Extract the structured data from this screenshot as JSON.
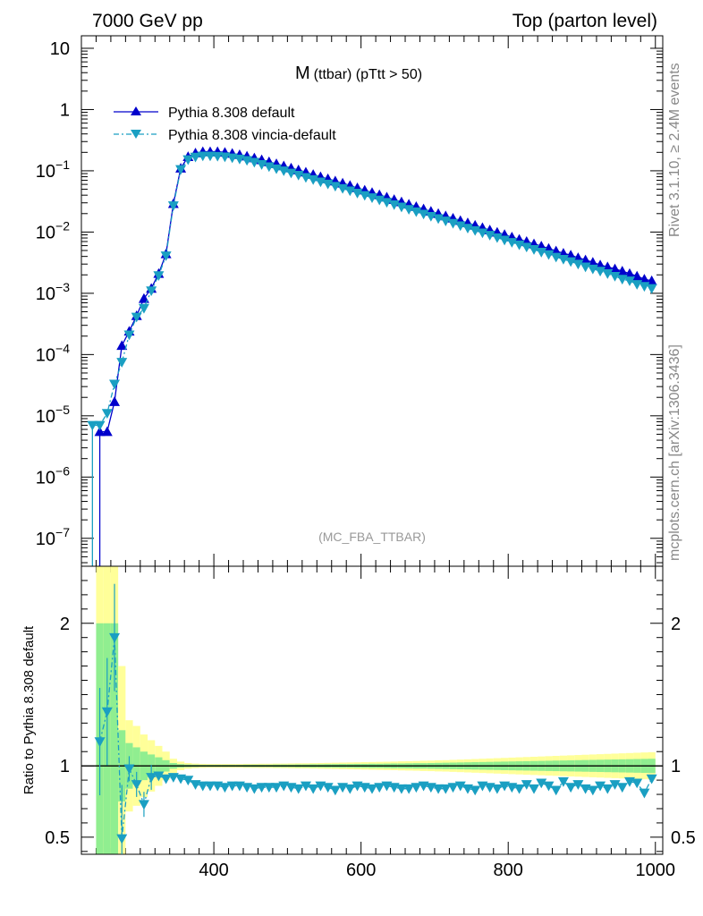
{
  "header": {
    "left": "7000 GeV pp",
    "right": "Top (parton level)"
  },
  "side_labels": {
    "rivet": "Rivet 3.1.10, ≥ 2.4M events",
    "source": "mcplots.cern.ch [arXiv:1306.3436]"
  },
  "colors": {
    "default": "#0000cc",
    "vincia": "#1a9fc2",
    "band_inner": "#90ee90",
    "band_outer": "#ffff99"
  },
  "chart_data": [
    {
      "type": "line",
      "panel": "main",
      "title_main": "M",
      "title_sub": "(ttbar) (pTtt > 50)",
      "annotation": "(MC_FBA_TTBAR)",
      "xlim": [
        220,
        1010
      ],
      "ylim": [
        3.5e-08,
        16
      ],
      "yscale": "log",
      "yticks": [
        "10",
        "1",
        "10-1",
        "10-2",
        "10-3",
        "10-4",
        "10-5",
        "10-6",
        "10-7"
      ],
      "legend": {
        "position": "top-left",
        "entries": [
          "Pythia 8.308 default",
          "Pythia 8.308 vincia-default"
        ]
      },
      "series": [
        {
          "name": "Pythia 8.308 default",
          "marker": "triangle-up",
          "x": [
            245,
            255,
            265,
            275,
            285,
            295,
            305,
            315,
            325,
            335,
            345,
            355,
            365,
            375,
            385,
            395,
            405,
            415,
            425,
            435,
            445,
            455,
            465,
            475,
            485,
            495,
            505,
            515,
            525,
            535,
            545,
            555,
            565,
            575,
            585,
            595,
            605,
            615,
            625,
            635,
            645,
            655,
            665,
            675,
            685,
            695,
            705,
            715,
            725,
            735,
            745,
            755,
            765,
            775,
            785,
            795,
            805,
            815,
            825,
            835,
            845,
            855,
            865,
            875,
            885,
            895,
            905,
            915,
            925,
            935,
            945,
            955,
            965,
            975,
            985,
            995
          ],
          "y": [
            5.5e-06,
            5.5e-06,
            1.7e-05,
            0.00014,
            0.00024,
            0.00043,
            0.00082,
            0.0012,
            0.0021,
            0.0044,
            0.029,
            0.11,
            0.17,
            0.195,
            0.205,
            0.205,
            0.205,
            0.2,
            0.192,
            0.183,
            0.173,
            0.162,
            0.151,
            0.14,
            0.13,
            0.12,
            0.111,
            0.103,
            0.095,
            0.087,
            0.08,
            0.074,
            0.068,
            0.0627,
            0.0575,
            0.0527,
            0.0483,
            0.0442,
            0.0405,
            0.0371,
            0.0339,
            0.031,
            0.0284,
            0.026,
            0.0238,
            0.0218,
            0.02,
            0.0183,
            0.0168,
            0.0154,
            0.0141,
            0.0129,
            0.0118,
            0.0108,
            0.0099,
            0.0091,
            0.0083,
            0.0076,
            0.007,
            0.0064,
            0.0059,
            0.0054,
            0.0049,
            0.0045,
            0.0042,
            0.0038,
            0.0035,
            0.0032,
            0.0029,
            0.0027,
            0.0025,
            0.0023,
            0.0021,
            0.0019,
            0.0017,
            0.0016
          ]
        },
        {
          "name": "Pythia 8.308 vincia-default",
          "marker": "triangle-down",
          "x": [
            235,
            245,
            255,
            265,
            275,
            285,
            295,
            305,
            315,
            325,
            335,
            345,
            355,
            365,
            375,
            385,
            395,
            405,
            415,
            425,
            435,
            445,
            455,
            465,
            475,
            485,
            495,
            505,
            515,
            525,
            535,
            545,
            555,
            565,
            575,
            585,
            595,
            605,
            615,
            625,
            635,
            645,
            655,
            665,
            675,
            685,
            695,
            705,
            715,
            725,
            735,
            745,
            755,
            765,
            775,
            785,
            795,
            805,
            815,
            825,
            835,
            845,
            855,
            865,
            875,
            885,
            895,
            905,
            915,
            925,
            935,
            945,
            955,
            965,
            975,
            985,
            995
          ],
          "y": [
            7e-06,
            7e-06,
            1.1e-05,
            3.3e-05,
            7.5e-05,
            0.00021,
            0.00041,
            0.00057,
            0.0011,
            0.00195,
            0.0041,
            0.027,
            0.105,
            0.152,
            0.168,
            0.175,
            0.175,
            0.173,
            0.169,
            0.163,
            0.156,
            0.148,
            0.138,
            0.127,
            0.117,
            0.108,
            0.1,
            0.092,
            0.085,
            0.078,
            0.072,
            0.066,
            0.061,
            0.056,
            0.0515,
            0.0472,
            0.0433,
            0.0397,
            0.0364,
            0.0334,
            0.0306,
            0.028,
            0.0257,
            0.0235,
            0.0215,
            0.0197,
            0.0181,
            0.0166,
            0.0152,
            0.0139,
            0.0127,
            0.0116,
            0.0106,
            0.0097,
            0.0089,
            0.0081,
            0.0074,
            0.0068,
            0.0062,
            0.0057,
            0.0052,
            0.0047,
            0.0043,
            0.0039,
            0.0036,
            0.0033,
            0.003,
            0.0027,
            0.0025,
            0.0023,
            0.0021,
            0.0019,
            0.0017,
            0.0016,
            0.0014,
            0.0013,
            0.0012
          ]
        }
      ]
    },
    {
      "type": "line",
      "panel": "ratio",
      "ylabel": "Ratio to Pythia 8.308 default",
      "xlim": [
        220,
        1010
      ],
      "ylim": [
        0.38,
        2.4
      ],
      "xticks": [
        400,
        600,
        800,
        1000
      ],
      "yticks": [
        0.5,
        1,
        2
      ],
      "reference": 1,
      "band": {
        "x": [
          235,
          245,
          255,
          265,
          275,
          285,
          295,
          305,
          315,
          325,
          335,
          345,
          355,
          365,
          375,
          385,
          395,
          405,
          415,
          425,
          435,
          445,
          455,
          465,
          475,
          485,
          495,
          505,
          515,
          525,
          535,
          545,
          555,
          565,
          575,
          585,
          595,
          605,
          615,
          625,
          635,
          645,
          655,
          665,
          675,
          685,
          695,
          705,
          715,
          725,
          735,
          745,
          755,
          765,
          775,
          785,
          795,
          805,
          815,
          825,
          835,
          845,
          855,
          865,
          875,
          885,
          895,
          905,
          915,
          925,
          935,
          945,
          955,
          965,
          975,
          985,
          995
        ],
        "outer": [
          0,
          2.4,
          2.4,
          2.4,
          0.7,
          0.32,
          0.28,
          0.22,
          0.18,
          0.14,
          0.1,
          0.05,
          0.03,
          0.02,
          0.016,
          0.014,
          0.013,
          0.013,
          0.013,
          0.013,
          0.013,
          0.014,
          0.014,
          0.015,
          0.015,
          0.016,
          0.016,
          0.017,
          0.018,
          0.018,
          0.019,
          0.02,
          0.021,
          0.022,
          0.023,
          0.024,
          0.025,
          0.026,
          0.027,
          0.028,
          0.029,
          0.03,
          0.032,
          0.033,
          0.034,
          0.036,
          0.037,
          0.039,
          0.04,
          0.042,
          0.044,
          0.046,
          0.048,
          0.05,
          0.052,
          0.054,
          0.056,
          0.058,
          0.06,
          0.062,
          0.064,
          0.066,
          0.068,
          0.07,
          0.072,
          0.074,
          0.076,
          0.078,
          0.08,
          0.082,
          0.084,
          0.086,
          0.088,
          0.09,
          0.092,
          0.094,
          0.096
        ],
        "inner": [
          0,
          1.0,
          1.0,
          1.0,
          0.25,
          0.16,
          0.13,
          0.1,
          0.08,
          0.06,
          0.04,
          0.02,
          0.012,
          0.009,
          0.008,
          0.007,
          0.007,
          0.007,
          0.007,
          0.007,
          0.007,
          0.008,
          0.008,
          0.008,
          0.008,
          0.009,
          0.009,
          0.009,
          0.01,
          0.01,
          0.011,
          0.011,
          0.012,
          0.012,
          0.013,
          0.013,
          0.014,
          0.014,
          0.015,
          0.015,
          0.016,
          0.017,
          0.017,
          0.018,
          0.019,
          0.019,
          0.02,
          0.021,
          0.022,
          0.023,
          0.024,
          0.025,
          0.026,
          0.027,
          0.028,
          0.029,
          0.03,
          0.031,
          0.032,
          0.033,
          0.034,
          0.035,
          0.036,
          0.037,
          0.038,
          0.039,
          0.04,
          0.041,
          0.042,
          0.043,
          0.044,
          0.045,
          0.046,
          0.047,
          0.048,
          0.049,
          0.05
        ]
      },
      "series": [
        {
          "name": "Pythia 8.308 vincia-default",
          "marker": "triangle-down",
          "x": [
            245,
            255,
            265,
            275,
            285,
            295,
            305,
            315,
            325,
            335,
            345,
            355,
            365,
            375,
            385,
            395,
            405,
            415,
            425,
            435,
            445,
            455,
            465,
            475,
            485,
            495,
            505,
            515,
            525,
            535,
            545,
            555,
            565,
            575,
            585,
            595,
            605,
            615,
            625,
            635,
            645,
            655,
            665,
            675,
            685,
            695,
            705,
            715,
            725,
            735,
            745,
            755,
            765,
            775,
            785,
            795,
            805,
            815,
            825,
            835,
            845,
            855,
            865,
            875,
            885,
            895,
            905,
            915,
            925,
            935,
            945,
            955,
            965,
            975,
            985,
            995
          ],
          "y": [
            1.17,
            1.38,
            1.9,
            0.49,
            0.98,
            0.87,
            0.73,
            0.92,
            0.93,
            0.91,
            0.92,
            0.91,
            0.9,
            0.87,
            0.86,
            0.86,
            0.86,
            0.85,
            0.86,
            0.86,
            0.85,
            0.84,
            0.85,
            0.85,
            0.85,
            0.86,
            0.85,
            0.84,
            0.86,
            0.84,
            0.86,
            0.85,
            0.83,
            0.85,
            0.84,
            0.86,
            0.85,
            0.84,
            0.85,
            0.86,
            0.85,
            0.84,
            0.84,
            0.85,
            0.86,
            0.85,
            0.84,
            0.84,
            0.85,
            0.86,
            0.84,
            0.83,
            0.86,
            0.85,
            0.84,
            0.86,
            0.85,
            0.84,
            0.87,
            0.84,
            0.88,
            0.86,
            0.83,
            0.89,
            0.85,
            0.87,
            0.84,
            0.83,
            0.86,
            0.84,
            0.87,
            0.85,
            0.89,
            0.88,
            0.81,
            0.91
          ]
        }
      ]
    }
  ]
}
